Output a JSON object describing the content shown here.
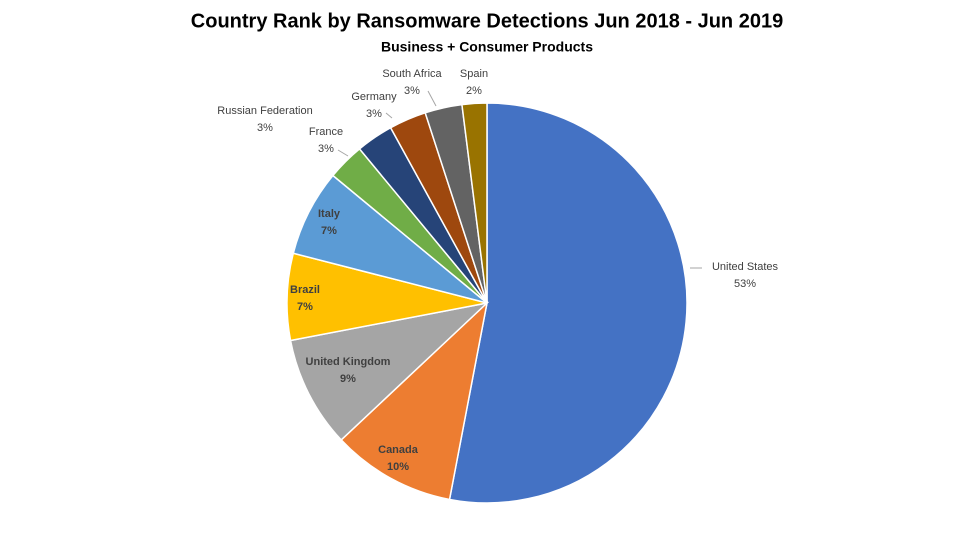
{
  "chart_data": {
    "type": "pie",
    "title": "Country Rank by Ransomware Detections Jun 2018 - Jun 2019",
    "subtitle": "Business + Consumer Products",
    "categories": [
      "United States",
      "Canada",
      "United Kingdom",
      "Brazil",
      "Italy",
      "France",
      "Russian Federation",
      "Germany",
      "South Africa",
      "Spain"
    ],
    "values": [
      53,
      10,
      9,
      7,
      7,
      3,
      3,
      3,
      3,
      2
    ],
    "value_labels": [
      "53%",
      "10%",
      "9%",
      "7%",
      "7%",
      "3%",
      "3%",
      "3%",
      "3%",
      "2%"
    ],
    "colors": [
      "#4472c4",
      "#ed7d31",
      "#a5a5a5",
      "#ffc000",
      "#5b9bd5",
      "#70ad47",
      "#264478",
      "#9e480e",
      "#636363",
      "#997300"
    ]
  }
}
